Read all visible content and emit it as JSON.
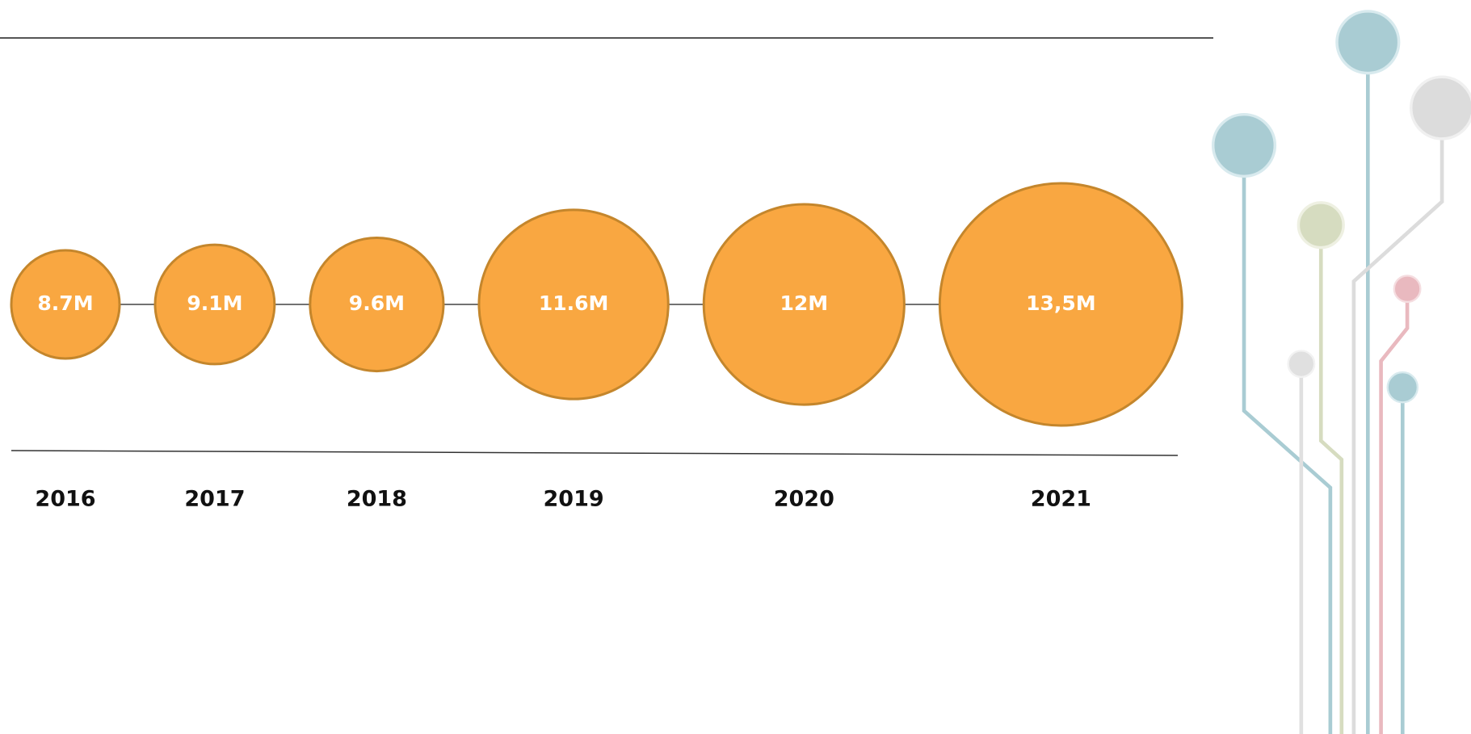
{
  "chart_data": {
    "type": "bubble",
    "categories": [
      "2016",
      "2017",
      "2018",
      "2019",
      "2020",
      "2021"
    ],
    "values": [
      8.7,
      9.1,
      9.6,
      11.6,
      12,
      13.5
    ],
    "value_labels": [
      "8.7M",
      "9.1M",
      "9.6M",
      "11.6M",
      "12M",
      "13,5M"
    ],
    "color": "#f9a741"
  }
}
